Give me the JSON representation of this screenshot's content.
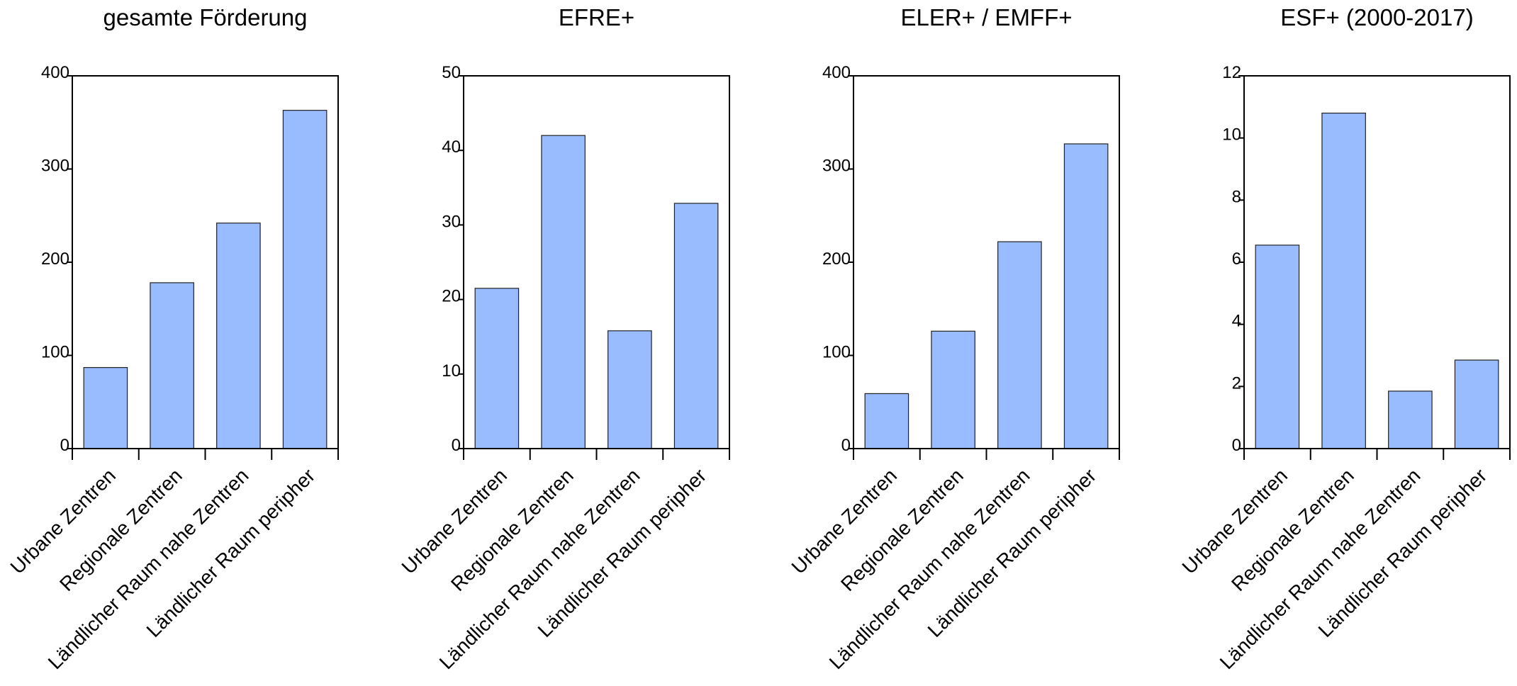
{
  "colors": {
    "bar": "#99bbff",
    "bar_stroke": "#222222",
    "axis": "#000000"
  },
  "chart_data": [
    {
      "type": "bar",
      "title": "gesamte Förderung",
      "categories": [
        "Urbane Zentren",
        "Regionale Zentren",
        "Ländlicher Raum nahe Zentren",
        "Ländlicher Raum peripher"
      ],
      "values": [
        87,
        178,
        242,
        363
      ],
      "ylim": [
        0,
        400
      ],
      "yticks": [
        0,
        100,
        200,
        300,
        400
      ]
    },
    {
      "type": "bar",
      "title": "EFRE+",
      "categories": [
        "Urbane Zentren",
        "Regionale Zentren",
        "Ländlicher Raum nahe Zentren",
        "Ländlicher Raum peripher"
      ],
      "values": [
        21.5,
        42,
        15.8,
        32.9
      ],
      "ylim": [
        0,
        50
      ],
      "yticks": [
        0,
        10,
        20,
        30,
        40,
        50
      ]
    },
    {
      "type": "bar",
      "title": "ELER+ / EMFF+",
      "categories": [
        "Urbane Zentren",
        "Regionale Zentren",
        "Ländlicher Raum nahe Zentren",
        "Ländlicher Raum peripher"
      ],
      "values": [
        59,
        126,
        222,
        327
      ],
      "ylim": [
        0,
        400
      ],
      "yticks": [
        0,
        100,
        200,
        300,
        400
      ]
    },
    {
      "type": "bar",
      "title": "ESF+ (2000-2017)",
      "categories": [
        "Urbane Zentren",
        "Regionale Zentren",
        "Ländlicher Raum nahe Zentren",
        "Ländlicher Raum peripher"
      ],
      "values": [
        6.55,
        10.8,
        1.85,
        2.85
      ],
      "ylim": [
        0,
        12
      ],
      "yticks": [
        0,
        2,
        4,
        6,
        8,
        10,
        12
      ]
    }
  ]
}
